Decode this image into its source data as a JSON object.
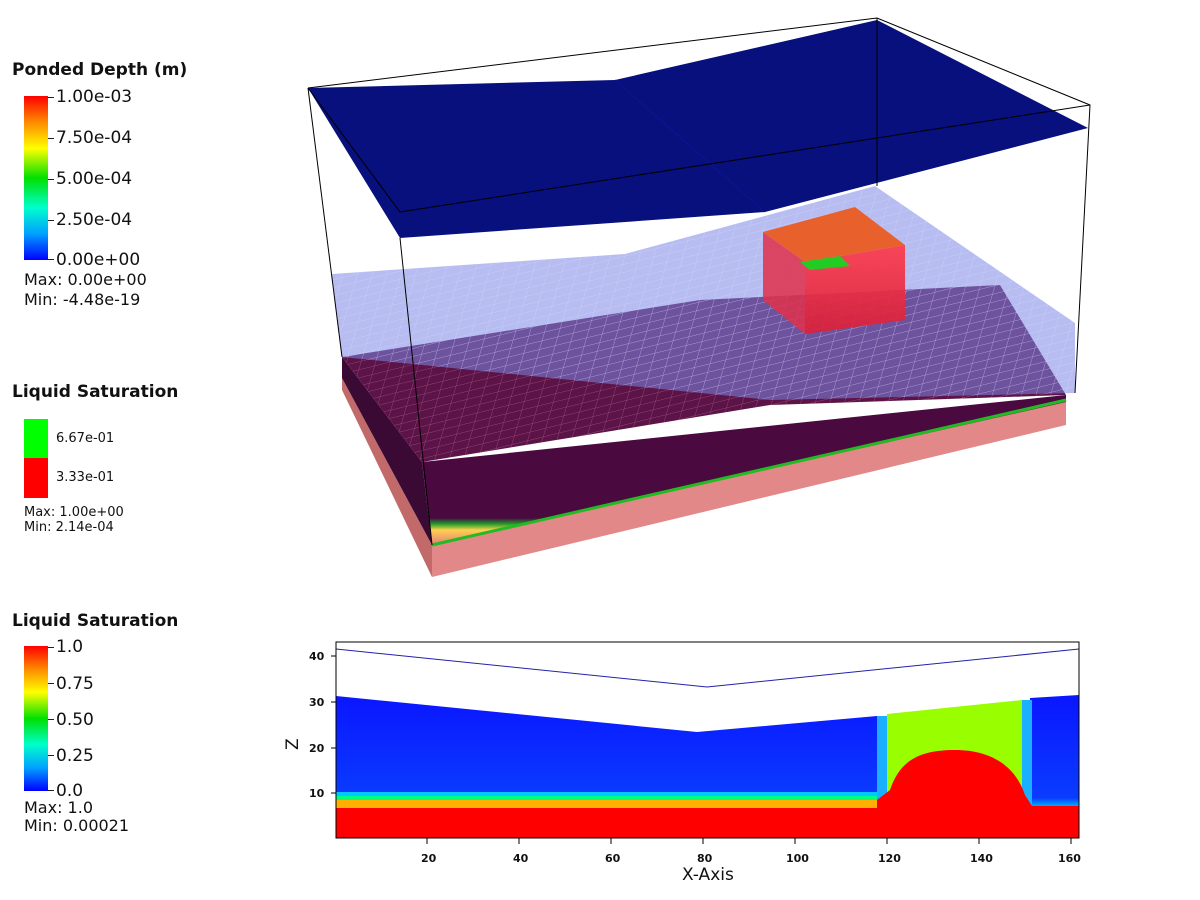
{
  "legends": {
    "ponded": {
      "title": "Ponded Depth (m)",
      "ticks": [
        "1.00e-03",
        "7.50e-04",
        "5.00e-04",
        "2.50e-04",
        "0.00e+00"
      ],
      "max": "Max:  0.00e+00",
      "min": "Min: -4.48e-19"
    },
    "sat3d": {
      "title": "Liquid Saturation",
      "ticks": [
        "6.67e-01",
        "3.33e-01"
      ],
      "max": "Max:  1.00e+00",
      "min": "Min:  2.14e-04"
    },
    "sat2d": {
      "title": "Liquid Saturation",
      "ticks": [
        "1.0",
        "0.75",
        "0.50",
        "0.25",
        "0.0"
      ],
      "max": "Max:  1.0",
      "min": "Min:  0.00021"
    }
  },
  "slice_plot": {
    "xlabel": "X-Axis",
    "ylabel": "Z",
    "x_ticks": [
      "20",
      "40",
      "60",
      "80",
      "100",
      "120",
      "140",
      "160"
    ],
    "y_ticks": [
      "40",
      "30",
      "20",
      "10"
    ]
  },
  "colors": {
    "surface_blue": "#07107c",
    "water_table_blue": "#8892e6",
    "saturated_red": "#ff0000",
    "unsat_blue": "#0a16ff",
    "lime": "#99ff00"
  }
}
